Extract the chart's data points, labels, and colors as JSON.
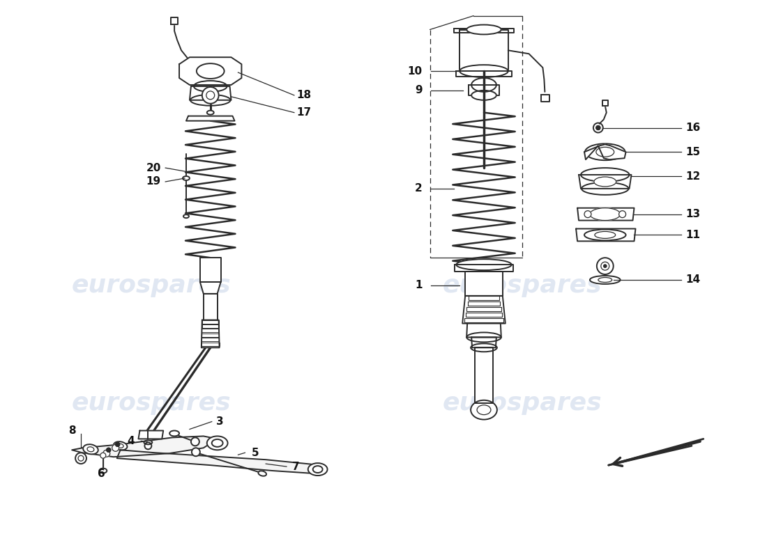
{
  "background_color": "#ffffff",
  "line_color": "#2a2a2a",
  "watermark_text": "eurospares",
  "watermark_color": "#c8d4e8",
  "lw_main": 1.4,
  "lw_thin": 0.9,
  "lw_thick": 2.2,
  "label_fontsize": 11,
  "label_fontweight": "bold"
}
